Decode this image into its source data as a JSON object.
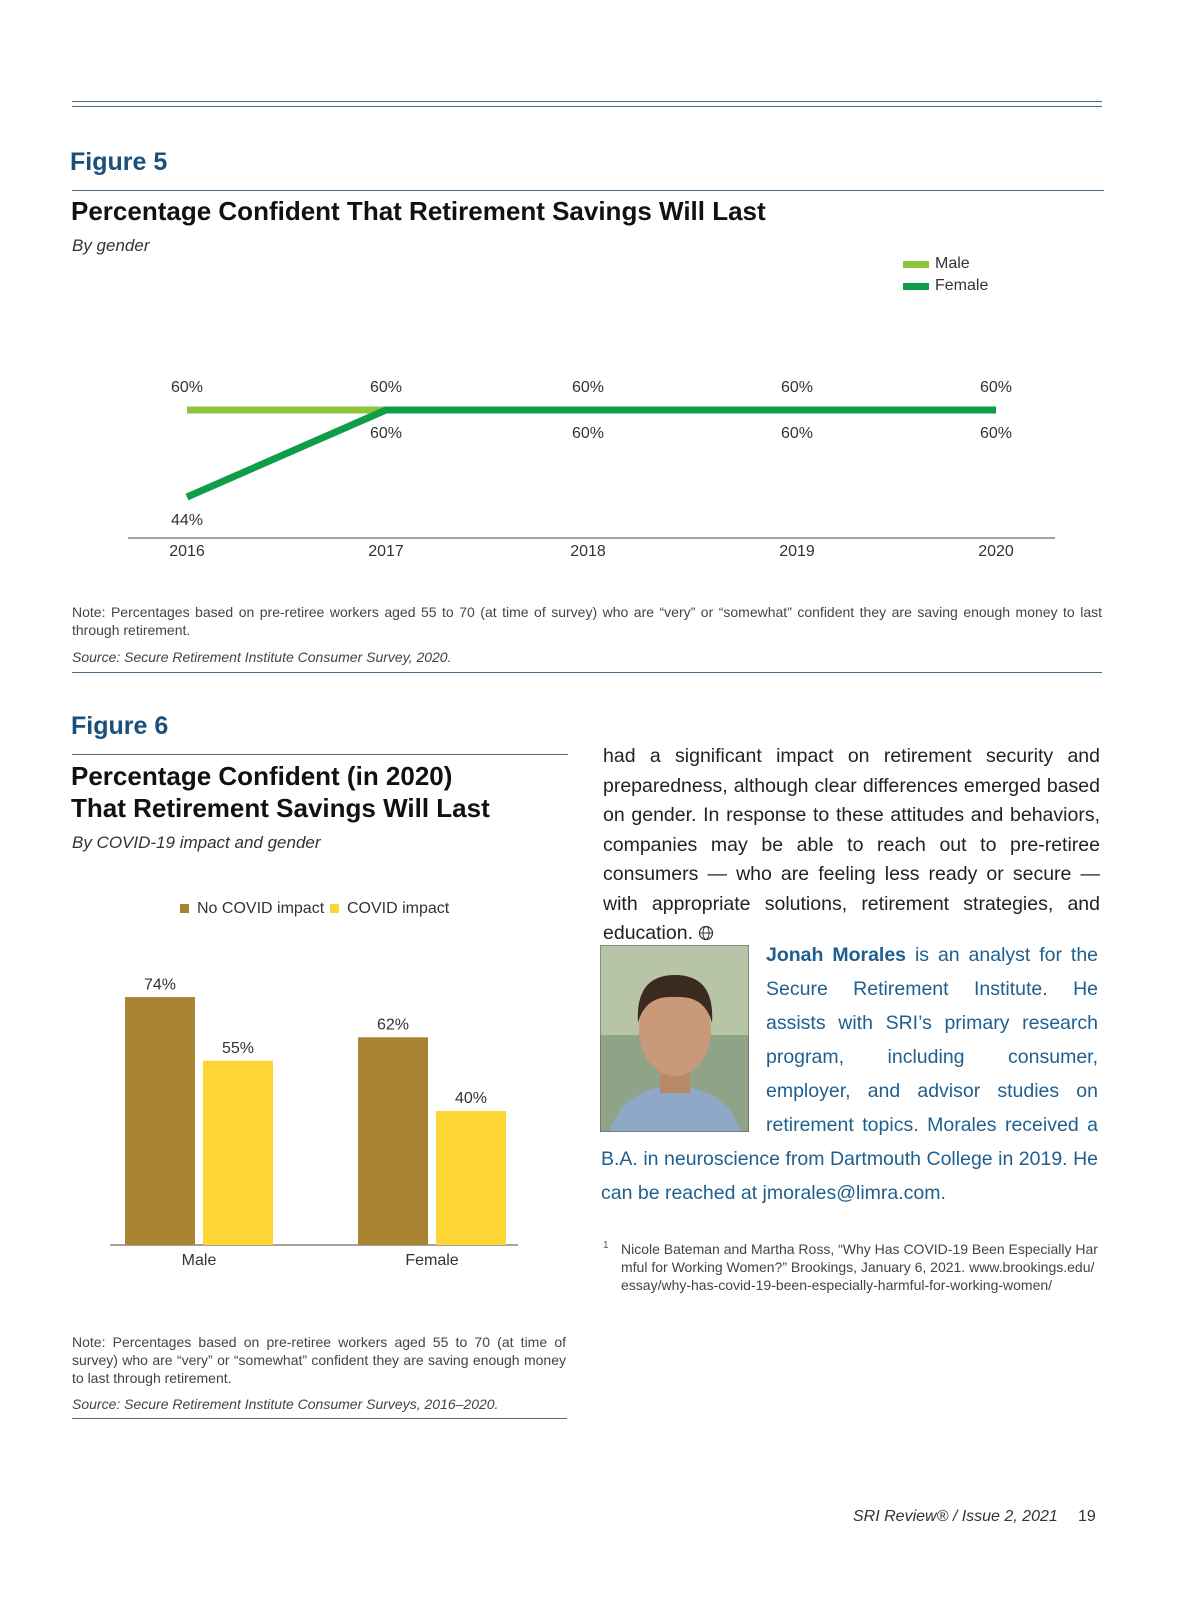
{
  "chart_data": [
    {
      "type": "line",
      "title": "Percentage Confident That Retirement Savings Will Last",
      "subtitle": "By gender",
      "categories": [
        "2016",
        "2017",
        "2018",
        "2019",
        "2020"
      ],
      "series": [
        {
          "name": "Male",
          "color": "#8cc63f",
          "values": [
            60,
            60,
            60,
            60,
            60
          ],
          "value_labels": [
            "60%",
            "60%",
            "60%",
            "60%",
            "60%"
          ]
        },
        {
          "name": "Female",
          "color": "#0f9d48",
          "values": [
            44,
            60,
            60,
            60,
            60
          ],
          "value_labels": [
            "44%",
            "60%",
            "60%",
            "60%",
            "60%"
          ]
        }
      ],
      "legend": "top-right"
    },
    {
      "type": "bar",
      "title": "Percentage Confident (in 2020) That Retirement Savings Will Last",
      "subtitle": "By COVID-19 impact and gender",
      "categories": [
        "Male",
        "Female"
      ],
      "series": [
        {
          "name": "No COVID impact",
          "color": "#a98331",
          "values": [
            74,
            62
          ],
          "value_labels": [
            "74%",
            "62%"
          ]
        },
        {
          "name": "COVID impact",
          "color": "#fdd535",
          "values": [
            55,
            40
          ],
          "value_labels": [
            "55%",
            "40%"
          ]
        }
      ],
      "legend": "top"
    }
  ],
  "figures": [
    {
      "label": "Figure 5",
      "note": "Note: Percentages based on pre-retiree workers aged 55 to 70 (at time of survey) who are “very” or “somewhat” confident they are saving enough money to last through retirement.",
      "source": "Source: Secure Retirement Institute Consumer Survey, 2020."
    },
    {
      "label": "Figure 6",
      "note": "Note: Percentages based on pre-retiree workers aged 55 to 70 (at time of survey) who are “very” or “somewhat” confident they are saving enough money to last through retirement.",
      "source": "Source: Secure Retirement Institute Consumer Surveys, 2016–2020."
    }
  ],
  "body": "had a significant impact on retirement security and preparedness, although clear differences emerged based on gender. In response to these attitudes and behaviors, companies may be able to reach out to pre-retiree consumers — who are feeling less ready or secure — with appropriate solutions, retirement strategies, and education.",
  "bio": {
    "name": "Jonah Morales",
    "text": "is an analyst for the Secure Retirement Institute. He assists with SRI’s primary research program, including consumer, employer, and advisor studies on retirement topics. Morales received a B.A. in neuroscience from Dartmouth College in 2019. He can be reached at jmorales@limra.com."
  },
  "footnote": {
    "number": "1",
    "text": "Nicole Bateman and Martha Ross, “Why Has COVID-19 Been Especially Harmful for Working Women?” Brookings, January 6, 2021. www.brookings.edu/essay/why-has-covid-19-been-especially-harmful-for-working-women/"
  },
  "footer": {
    "publication": "SRI Review® / Issue 2, 2021",
    "page": "19"
  }
}
